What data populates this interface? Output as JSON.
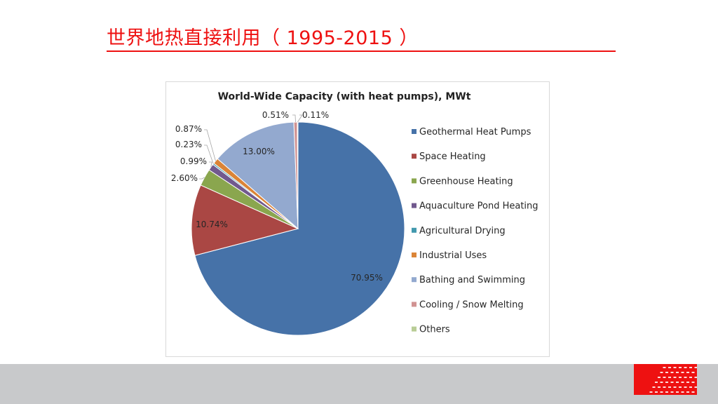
{
  "slide": {
    "title": "世界地热直接利用（ 1995-2015 ）"
  },
  "chart_data": {
    "type": "pie",
    "title": "World-Wide Capacity (with heat pumps), MWt",
    "legend_position": "right",
    "slices": [
      {
        "name": "Geothermal Heat Pumps",
        "value": 70.95,
        "label": "70.95%",
        "color": "#4672a8"
      },
      {
        "name": "Space Heating",
        "value": 10.74,
        "label": "10.74%",
        "color": "#aa4744"
      },
      {
        "name": "Greenhouse Heating",
        "value": 2.6,
        "label": "2.60%",
        "color": "#8aa64e"
      },
      {
        "name": "Aquaculture Pond Heating",
        "value": 0.99,
        "label": "0.99%",
        "color": "#71598e"
      },
      {
        "name": "Agricultural Drying",
        "value": 0.23,
        "label": "0.23%",
        "color": "#4299ae"
      },
      {
        "name": "Industrial Uses",
        "value": 0.87,
        "label": "0.87%",
        "color": "#db8437"
      },
      {
        "name": "Bathing and Swimming",
        "value": 13.0,
        "label": "13.00%",
        "color": "#93a9cf"
      },
      {
        "name": "Cooling / Snow Melting",
        "value": 0.51,
        "label": "0.51%",
        "color": "#d19392"
      },
      {
        "name": "Others",
        "value": 0.11,
        "label": "0.11%",
        "color": "#b9cd96"
      }
    ]
  },
  "colors": {
    "accent": "#ee1111",
    "footer": "#c8c9cb"
  }
}
